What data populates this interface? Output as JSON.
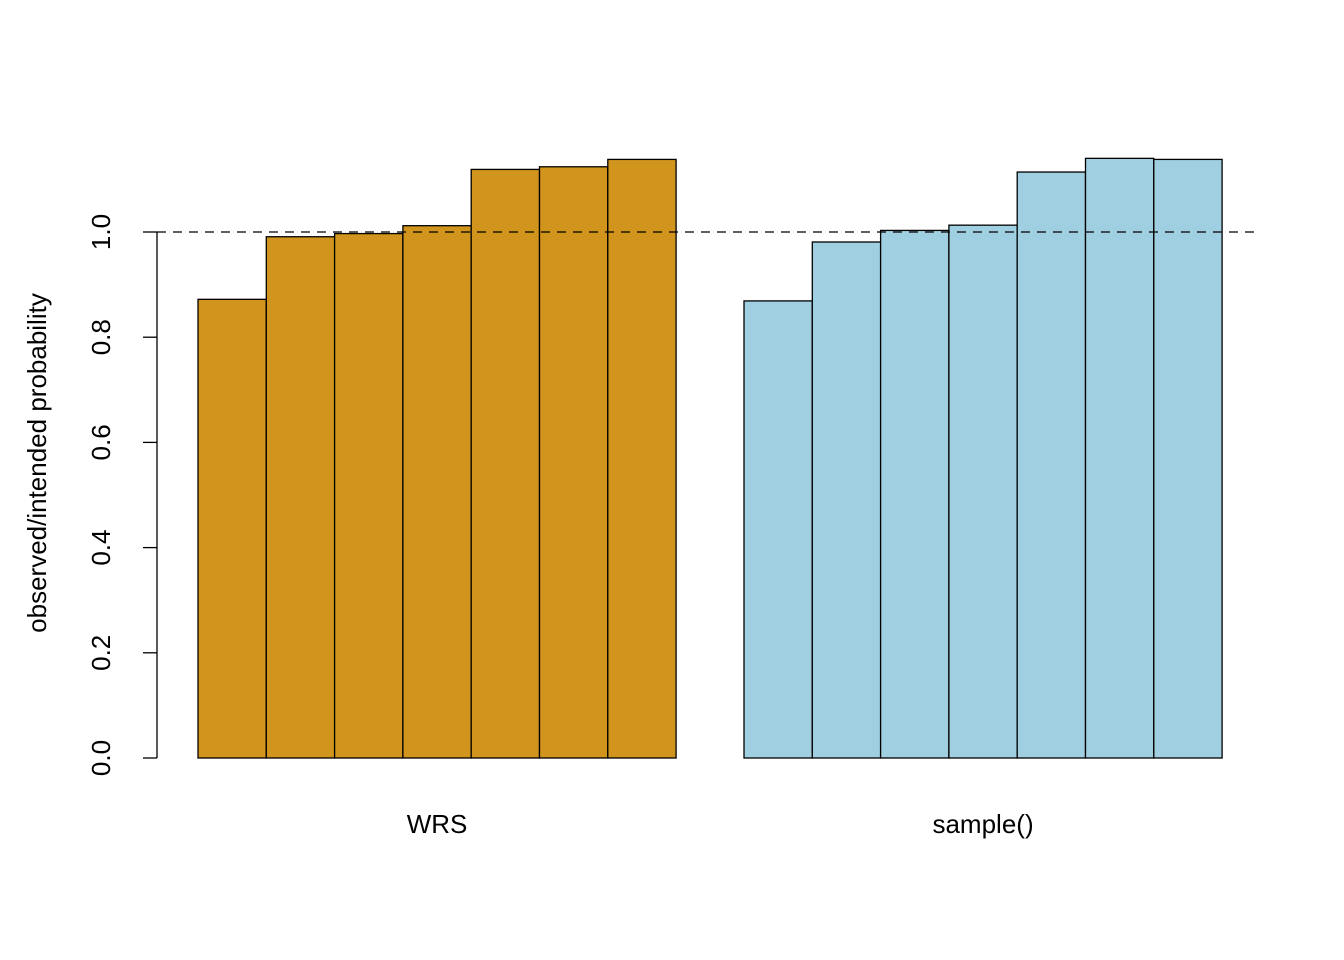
{
  "chart_data": {
    "type": "bar",
    "title": "",
    "xlabel": "",
    "ylabel": "observed/intended probability",
    "ylim": [
      0,
      1.2
    ],
    "yticks": [
      "0.0",
      "0.2",
      "0.4",
      "0.6",
      "0.8",
      "1.0"
    ],
    "reference_line": {
      "y": 1.0,
      "style": "dashed"
    },
    "groups": [
      {
        "label": "WRS",
        "color": "#D1951D",
        "values": [
          0.872,
          0.991,
          0.997,
          1.012,
          1.119,
          1.124,
          1.138
        ]
      },
      {
        "label": "sample()",
        "color": "#9FCFE0",
        "values": [
          0.869,
          0.981,
          1.003,
          1.013,
          1.114,
          1.14,
          1.138
        ]
      }
    ],
    "grid": false,
    "legend": "none"
  }
}
